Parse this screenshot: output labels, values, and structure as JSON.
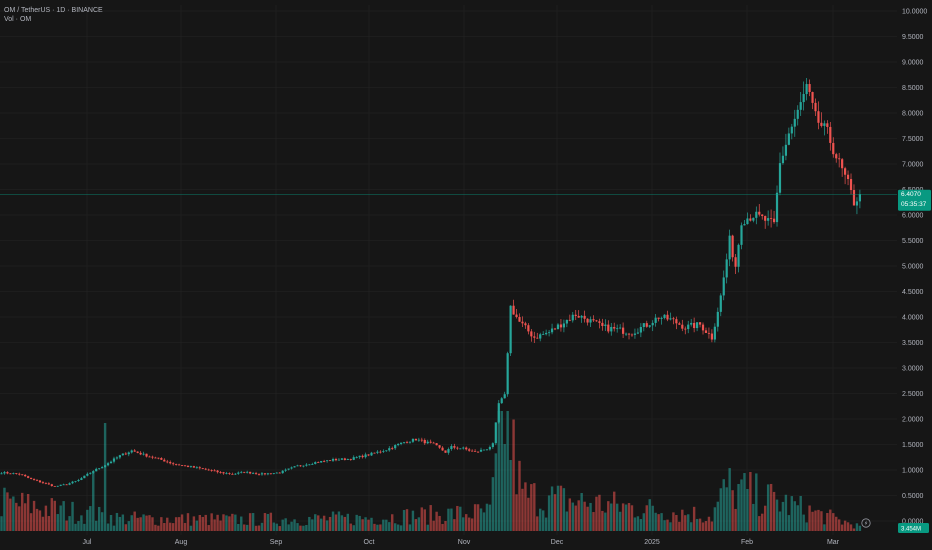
{
  "header": {
    "symbol_line": "OM / TetherUS · 1D · BINANCE",
    "volume_line": "Vol · OM"
  },
  "price_tag": {
    "price": "6.4070",
    "countdown": "05:35:37"
  },
  "volume_tag": "3.454M",
  "colors": {
    "up": "#26a69a",
    "down": "#ef5350",
    "background": "#161616",
    "grid": "#252525",
    "tag": "#089981"
  },
  "icons": [
    "lightning-icon"
  ],
  "chart_data": {
    "type": "candlestick",
    "title": "OM / TetherUS · 1D · BINANCE",
    "xlabel": "",
    "ylabel": "",
    "ylim": [
      0,
      10
    ],
    "y_ticks": [
      "10.0000",
      "9.5000",
      "9.0000",
      "8.5000",
      "8.0000",
      "7.5000",
      "7.0000",
      "6.5000",
      "6.0000",
      "5.5000",
      "5.0000",
      "4.5000",
      "4.0000",
      "3.5000",
      "3.0000",
      "2.5000",
      "2.0000",
      "1.5000",
      "1.0000",
      "0.5000",
      "0.0000"
    ],
    "x_ticks": [
      "Jul",
      "Aug",
      "Sep",
      "Oct",
      "Nov",
      "Dec",
      "2025",
      "Feb",
      "Mar"
    ],
    "grid": true,
    "last_close": 6.407,
    "anchors": [
      [
        0,
        0.95
      ],
      [
        6,
        0.92
      ],
      [
        10,
        0.82
      ],
      [
        14,
        0.75
      ],
      [
        18,
        0.68
      ],
      [
        22,
        0.72
      ],
      [
        26,
        0.8
      ],
      [
        30,
        0.95
      ],
      [
        35,
        1.1
      ],
      [
        40,
        1.28
      ],
      [
        44,
        1.38
      ],
      [
        48,
        1.3
      ],
      [
        54,
        1.2
      ],
      [
        58,
        1.12
      ],
      [
        62,
        1.08
      ],
      [
        68,
        1.02
      ],
      [
        74,
        0.95
      ],
      [
        78,
        0.92
      ],
      [
        82,
        0.96
      ],
      [
        88,
        0.92
      ],
      [
        94,
        0.95
      ],
      [
        100,
        1.08
      ],
      [
        106,
        1.15
      ],
      [
        112,
        1.2
      ],
      [
        118,
        1.22
      ],
      [
        124,
        1.3
      ],
      [
        130,
        1.4
      ],
      [
        136,
        1.55
      ],
      [
        140,
        1.6
      ],
      [
        146,
        1.5
      ],
      [
        150,
        1.35
      ],
      [
        152,
        1.45
      ],
      [
        156,
        1.42
      ],
      [
        160,
        1.35
      ],
      [
        164,
        1.42
      ],
      [
        166,
        1.5
      ],
      [
        168,
        2.3
      ],
      [
        170,
        2.45
      ],
      [
        172,
        4.2
      ],
      [
        175,
        3.9
      ],
      [
        180,
        3.6
      ],
      [
        185,
        3.7
      ],
      [
        190,
        3.9
      ],
      [
        194,
        4.05
      ],
      [
        198,
        3.95
      ],
      [
        203,
        3.8
      ],
      [
        208,
        3.75
      ],
      [
        213,
        3.7
      ],
      [
        218,
        3.85
      ],
      [
        222,
        4.0
      ],
      [
        226,
        3.95
      ],
      [
        231,
        3.8
      ],
      [
        236,
        3.85
      ],
      [
        240,
        3.6
      ],
      [
        243,
        4.4
      ],
      [
        246,
        5.5
      ],
      [
        248,
        5.0
      ],
      [
        250,
        5.9
      ],
      [
        254,
        6.0
      ],
      [
        258,
        5.9
      ],
      [
        261,
        5.8
      ],
      [
        263,
        7.0
      ],
      [
        266,
        7.6
      ],
      [
        269,
        8.0
      ],
      [
        272,
        8.5
      ],
      [
        275,
        7.9
      ],
      [
        279,
        7.6
      ],
      [
        283,
        7.0
      ],
      [
        286,
        6.6
      ],
      [
        288,
        6.25
      ],
      [
        290,
        6.4
      ]
    ],
    "volume_ylim": [
      0,
      10000000
    ],
    "volume_anchors": [
      [
        0,
        2.3
      ],
      [
        40,
        1.0
      ],
      [
        80,
        0.9
      ],
      [
        120,
        1.0
      ],
      [
        165,
        1.5
      ],
      [
        170,
        9.4
      ],
      [
        176,
        2.8
      ],
      [
        240,
        1.2
      ],
      [
        245,
        3.5
      ],
      [
        260,
        2.5
      ],
      [
        290,
        0.35
      ]
    ]
  }
}
